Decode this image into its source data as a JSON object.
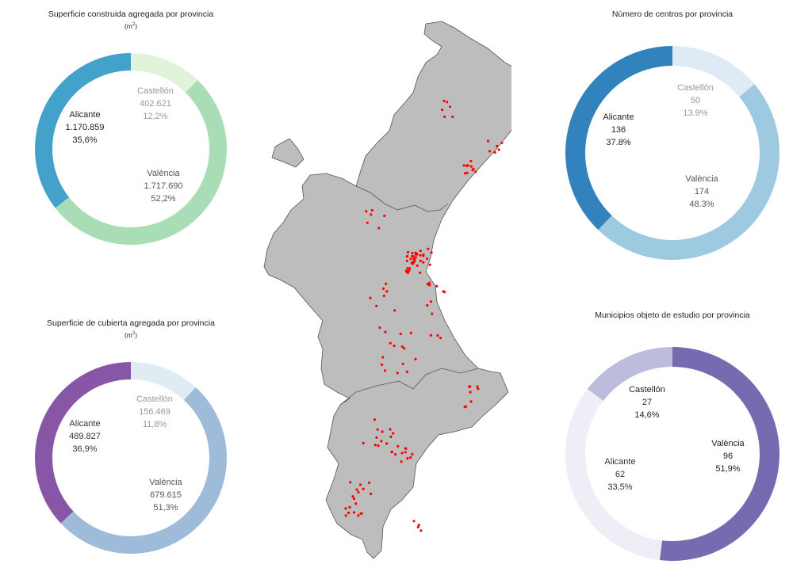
{
  "chart_data": [
    {
      "type": "pie",
      "title": "Superficie construida agregada por provincia",
      "subtitle_unit": "m",
      "subtitle_exp": "2",
      "categories": [
        "Castellón",
        "València",
        "Alicante"
      ],
      "values": [
        402621,
        1717690,
        1170859
      ],
      "value_labels": [
        "402.621",
        "1.717.690",
        "1.170.859"
      ],
      "percent_labels": [
        "12,2%",
        "52,2%",
        "35,6%"
      ],
      "colors": [
        "#e0f3db",
        "#a8ddb5",
        "#43a2ca"
      ],
      "text_colors": [
        "#999999",
        "#555555",
        "#222222"
      ]
    },
    {
      "type": "pie",
      "title": "Número de centros por provincia",
      "subtitle_unit": "",
      "subtitle_exp": "",
      "categories": [
        "Castellón",
        "València",
        "Alicante"
      ],
      "values": [
        50,
        174,
        136
      ],
      "value_labels": [
        "50",
        "174",
        "136"
      ],
      "percent_labels": [
        "13.9%",
        "48.3%",
        "37.8%"
      ],
      "colors": [
        "#deebf7",
        "#9ecae1",
        "#3182bd"
      ],
      "text_colors": [
        "#999999",
        "#555555",
        "#222222"
      ]
    },
    {
      "type": "pie",
      "title": "Superficie de cubierta agregada por provincia",
      "subtitle_unit": "m",
      "subtitle_exp": "2",
      "categories": [
        "Castellón",
        "València",
        "Alicante"
      ],
      "values": [
        156469,
        679615,
        489827
      ],
      "value_labels": [
        "156.469",
        "679.615",
        "489.827"
      ],
      "percent_labels": [
        "11,8%",
        "51,3%",
        "36,9%"
      ],
      "colors": [
        "#e0ecf4",
        "#9ebcda",
        "#8856a7"
      ],
      "text_colors": [
        "#999999",
        "#555555",
        "#333333"
      ]
    },
    {
      "type": "pie",
      "title": "Municipios objeto de estudio por provincia",
      "subtitle_unit": "",
      "subtitle_exp": "",
      "categories": [
        "València",
        "Alicante",
        "Castellón"
      ],
      "values": [
        96,
        62,
        27
      ],
      "value_labels": [
        "96",
        "62",
        "27"
      ],
      "percent_labels": [
        "51,9%",
        "33,5%",
        "14,6%"
      ],
      "colors": [
        "#756bb1",
        "#efedf5",
        "#bcbddc"
      ],
      "text_colors": [
        "#222222",
        "#333333",
        "#222222"
      ]
    }
  ],
  "map": {
    "region_fill": "#bdbdbd",
    "border_color": "#555555",
    "dot_color": "#ff0000"
  }
}
